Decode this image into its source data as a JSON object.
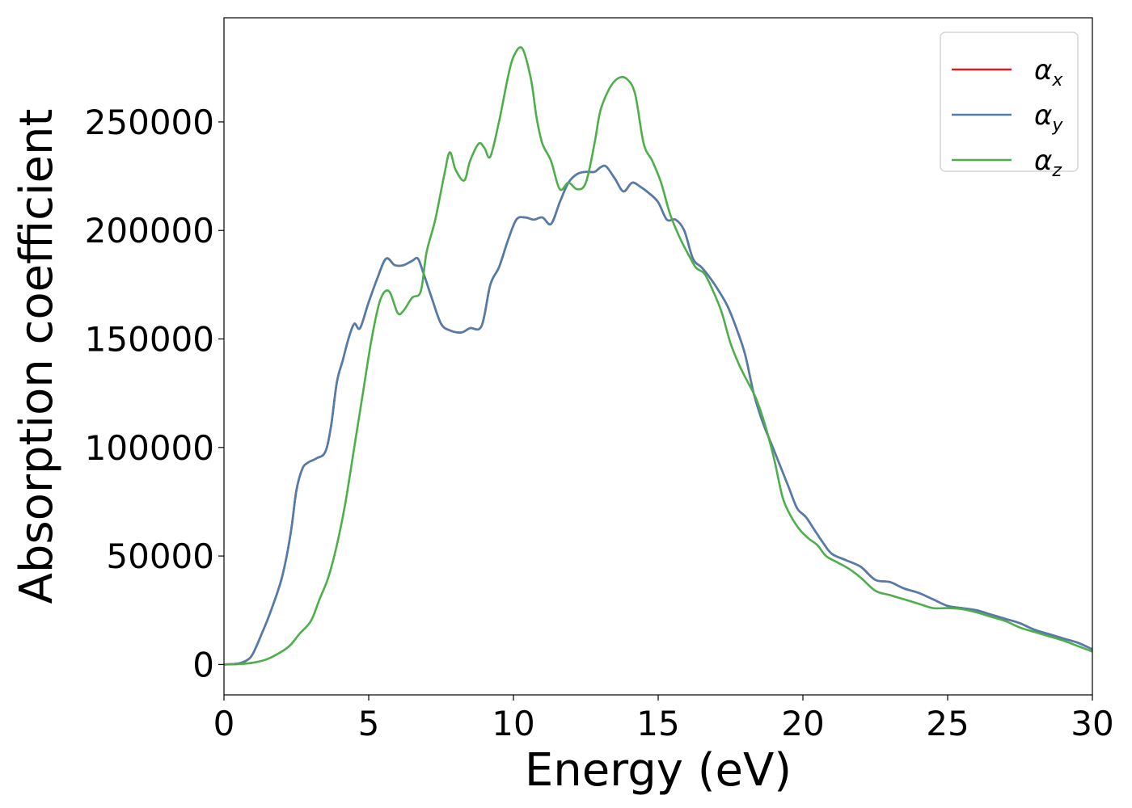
{
  "chart_data": {
    "type": "line",
    "title": "",
    "xlabel": "Energy (eV)",
    "ylabel": "Absorption coefficient",
    "xlim": [
      0,
      30
    ],
    "ylim": [
      -14000,
      298000
    ],
    "xticks": [
      0,
      5,
      10,
      15,
      20,
      25,
      30
    ],
    "xtick_labels": [
      "0",
      "5",
      "10",
      "15",
      "20",
      "25",
      "30"
    ],
    "yticks": [
      0,
      50000,
      100000,
      150000,
      200000,
      250000
    ],
    "ytick_labels": [
      "0",
      "50000",
      "100000",
      "150000",
      "200000",
      "250000"
    ],
    "grid": false,
    "legend_position": "top-right",
    "series": [
      {
        "name": "α_x",
        "symbol": "α",
        "subscript": "x",
        "color": "#e41a1c",
        "x": [
          0,
          0.5,
          0.8,
          1.0,
          1.3,
          1.6,
          2.0,
          2.3,
          2.5,
          2.7,
          2.9,
          3.2,
          3.5,
          3.7,
          3.9,
          4.1,
          4.3,
          4.5,
          4.7,
          5.0,
          5.3,
          5.6,
          5.9,
          6.2,
          6.5,
          6.7,
          6.9,
          7.2,
          7.5,
          7.8,
          8.2,
          8.5,
          8.9,
          9.2,
          9.5,
          9.8,
          10.1,
          10.4,
          10.7,
          11.0,
          11.3,
          11.6,
          11.9,
          12.2,
          12.5,
          12.8,
          13.0,
          13.2,
          13.5,
          13.8,
          14.1,
          14.4,
          14.7,
          15.0,
          15.3,
          15.6,
          15.9,
          16.2,
          16.5,
          16.8,
          17.1,
          17.4,
          17.7,
          18.0,
          18.3,
          18.6,
          18.9,
          19.2,
          19.5,
          19.8,
          20.1,
          20.4,
          20.7,
          21.0,
          21.5,
          22.0,
          22.5,
          23.0,
          23.5,
          24.0,
          24.5,
          25.0,
          25.5,
          26.0,
          26.5,
          27.0,
          27.5,
          28.0,
          28.5,
          29.0,
          29.5,
          30.0
        ],
        "y": [
          0,
          500,
          2000,
          5000,
          14000,
          24000,
          40000,
          60000,
          80000,
          90000,
          93000,
          95000,
          98000,
          110000,
          130000,
          140000,
          150000,
          157000,
          155000,
          167000,
          178000,
          187000,
          184000,
          184000,
          186000,
          187000,
          180000,
          168000,
          157000,
          154000,
          153000,
          155000,
          156000,
          175000,
          183000,
          195000,
          205000,
          206000,
          205000,
          206000,
          203000,
          213000,
          222000,
          226000,
          227000,
          227000,
          229000,
          229500,
          224000,
          218000,
          222000,
          220000,
          217000,
          213000,
          205000,
          205000,
          200000,
          187000,
          183000,
          178000,
          172000,
          165000,
          155000,
          143000,
          125000,
          112000,
          102000,
          92000,
          82000,
          72000,
          68000,
          62000,
          56000,
          51000,
          48000,
          45000,
          39000,
          38000,
          35000,
          33000,
          30000,
          27000,
          26000,
          25000,
          23000,
          21000,
          19000,
          16000,
          14000,
          12000,
          10000,
          7000
        ]
      },
      {
        "name": "α_y",
        "symbol": "α",
        "subscript": "y",
        "color": "#4f7dad",
        "x": [
          0,
          0.5,
          0.8,
          1.0,
          1.3,
          1.6,
          2.0,
          2.3,
          2.5,
          2.7,
          2.9,
          3.2,
          3.5,
          3.7,
          3.9,
          4.1,
          4.3,
          4.5,
          4.7,
          5.0,
          5.3,
          5.6,
          5.9,
          6.2,
          6.5,
          6.7,
          6.9,
          7.2,
          7.5,
          7.8,
          8.2,
          8.5,
          8.9,
          9.2,
          9.5,
          9.8,
          10.1,
          10.4,
          10.7,
          11.0,
          11.3,
          11.6,
          11.9,
          12.2,
          12.5,
          12.8,
          13.0,
          13.2,
          13.5,
          13.8,
          14.1,
          14.4,
          14.7,
          15.0,
          15.3,
          15.6,
          15.9,
          16.2,
          16.5,
          16.8,
          17.1,
          17.4,
          17.7,
          18.0,
          18.3,
          18.6,
          18.9,
          19.2,
          19.5,
          19.8,
          20.1,
          20.4,
          20.7,
          21.0,
          21.5,
          22.0,
          22.5,
          23.0,
          23.5,
          24.0,
          24.5,
          25.0,
          25.5,
          26.0,
          26.5,
          27.0,
          27.5,
          28.0,
          28.5,
          29.0,
          29.5,
          30.0
        ],
        "y": [
          0,
          500,
          2000,
          5000,
          14000,
          24000,
          40000,
          60000,
          80000,
          90000,
          93000,
          95000,
          98000,
          110000,
          130000,
          140000,
          150000,
          157000,
          155000,
          167000,
          178000,
          187000,
          184000,
          184000,
          186000,
          187000,
          180000,
          168000,
          157000,
          154000,
          153000,
          155000,
          156000,
          175000,
          183000,
          195000,
          205000,
          206000,
          205000,
          206000,
          203000,
          213000,
          222000,
          226000,
          227000,
          227000,
          229000,
          229500,
          224000,
          218000,
          222000,
          220000,
          217000,
          213000,
          205000,
          205000,
          200000,
          187000,
          183000,
          178000,
          172000,
          165000,
          155000,
          143000,
          125000,
          112000,
          102000,
          92000,
          82000,
          72000,
          68000,
          62000,
          56000,
          51000,
          48000,
          45000,
          39000,
          38000,
          35000,
          33000,
          30000,
          27000,
          26000,
          25000,
          23000,
          21000,
          19000,
          16000,
          14000,
          12000,
          10000,
          7000
        ]
      },
      {
        "name": "α_z",
        "symbol": "α",
        "subscript": "z",
        "color": "#4daf4a",
        "x": [
          0,
          0.5,
          1.0,
          1.5,
          2.0,
          2.3,
          2.6,
          3.0,
          3.3,
          3.6,
          3.9,
          4.2,
          4.5,
          4.8,
          5.1,
          5.4,
          5.7,
          6.0,
          6.2,
          6.5,
          6.8,
          7.0,
          7.3,
          7.6,
          7.8,
          8.0,
          8.3,
          8.5,
          8.8,
          9.0,
          9.2,
          9.5,
          9.8,
          10.0,
          10.3,
          10.6,
          10.8,
          11.0,
          11.3,
          11.6,
          11.9,
          12.2,
          12.5,
          12.8,
          13.0,
          13.3,
          13.6,
          13.9,
          14.2,
          14.5,
          14.8,
          15.1,
          15.4,
          15.7,
          16.0,
          16.3,
          16.6,
          16.9,
          17.2,
          17.5,
          17.8,
          18.1,
          18.4,
          18.7,
          19.0,
          19.3,
          19.6,
          19.9,
          20.2,
          20.5,
          20.8,
          21.2,
          21.6,
          22.0,
          22.5,
          23.0,
          23.5,
          24.0,
          24.5,
          25.0,
          25.5,
          26.0,
          26.5,
          27.0,
          27.5,
          28.0,
          28.5,
          29.0,
          29.5,
          30.0
        ],
        "y": [
          0,
          200,
          800,
          2500,
          6000,
          9000,
          14000,
          20000,
          30000,
          40000,
          55000,
          75000,
          100000,
          125000,
          150000,
          168000,
          172000,
          162000,
          163000,
          169000,
          172000,
          190000,
          205000,
          225000,
          236000,
          228000,
          223000,
          232000,
          240000,
          238000,
          234000,
          250000,
          270000,
          280000,
          284000,
          270000,
          252000,
          240000,
          232000,
          219000,
          222000,
          219000,
          222000,
          240000,
          255000,
          265000,
          270000,
          270000,
          263000,
          240000,
          232000,
          222000,
          208000,
          198000,
          190000,
          183000,
          180000,
          172000,
          162000,
          148000,
          138000,
          130000,
          122000,
          110000,
          95000,
          77000,
          68000,
          62000,
          58000,
          55000,
          50000,
          47000,
          44000,
          40000,
          34000,
          32000,
          30000,
          28000,
          26000,
          26000,
          25500,
          24000,
          22000,
          20000,
          17000,
          15000,
          13000,
          11000,
          8500,
          6000
        ]
      }
    ]
  }
}
